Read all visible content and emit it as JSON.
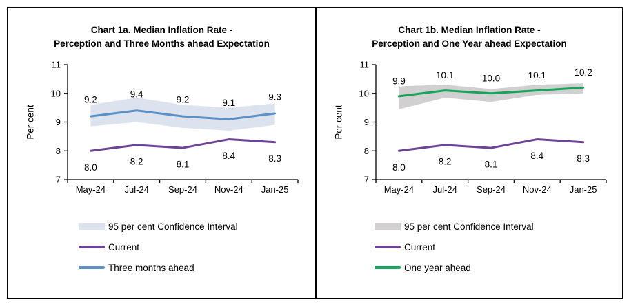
{
  "page": {
    "background": "#ffffff"
  },
  "chart_data": [
    {
      "type": "line",
      "title": "Chart 1a. Median Inflation Rate - Perception and Three Months ahead Expectation",
      "title_lines": [
        "Chart 1a. Median Inflation Rate -",
        "Perception and Three Months ahead Expectation"
      ],
      "categories": [
        "May-24",
        "Jul-24",
        "Sep-24",
        "Nov-24",
        "Jan-25"
      ],
      "series": [
        {
          "name": "Three months ahead",
          "values": [
            9.2,
            9.4,
            9.2,
            9.1,
            9.3
          ],
          "labels": [
            "9.2",
            "9.4",
            "9.2",
            "9.1",
            "9.3"
          ],
          "color": "#5b91c4",
          "label_offset": -24
        },
        {
          "name": "Current",
          "values": [
            8.0,
            8.2,
            8.1,
            8.4,
            8.3
          ],
          "labels": [
            "8.0",
            "8.2",
            "8.1",
            "8.4",
            "8.3"
          ],
          "color": "#6d4396",
          "label_offset": 24
        }
      ],
      "band": {
        "name": "95 per cent Confidence Interval",
        "upper": [
          9.6,
          9.85,
          9.6,
          9.5,
          9.65
        ],
        "lower": [
          8.85,
          9.0,
          8.8,
          8.7,
          8.9
        ],
        "color": "#dde3ee"
      },
      "ylabel": "Per cent",
      "ylim": [
        7,
        11
      ],
      "yticks": [
        7,
        8,
        9,
        10,
        11
      ],
      "grid": false,
      "legend_position": "bottom",
      "legend": [
        {
          "label": "95 per cent Confidence Interval",
          "type": "band",
          "color": "#dde3ee"
        },
        {
          "label": "Current",
          "type": "line",
          "color": "#6d4396"
        },
        {
          "label": "Three months ahead",
          "type": "line",
          "color": "#5b91c4"
        }
      ]
    },
    {
      "type": "line",
      "title": "Chart 1b. Median Inflation Rate - Perception and One Year ahead Expectation",
      "title_lines": [
        "Chart 1b. Median Inflation Rate -",
        "Perception and One Year ahead Expectation"
      ],
      "categories": [
        "May-24",
        "Jul-24",
        "Sep-24",
        "Nov-24",
        "Jan-25"
      ],
      "series": [
        {
          "name": "One year ahead",
          "values": [
            9.9,
            10.1,
            10.0,
            10.1,
            10.2
          ],
          "labels": [
            "9.9",
            "10.1",
            "10.0",
            "10.1",
            "10.2"
          ],
          "color": "#17a45c",
          "label_offset": -22
        },
        {
          "name": "Current",
          "values": [
            8.0,
            8.2,
            8.1,
            8.4,
            8.3
          ],
          "labels": [
            "8.0",
            "8.2",
            "8.1",
            "8.4",
            "8.3"
          ],
          "color": "#6d4396",
          "label_offset": 24
        }
      ],
      "band": {
        "name": "95 per cent Confidence Interval",
        "upper": [
          10.25,
          10.3,
          10.15,
          10.3,
          10.35
        ],
        "lower": [
          9.45,
          9.85,
          9.7,
          9.95,
          10.0
        ],
        "color": "#d1cfcf"
      },
      "ylabel": "Per cent",
      "ylim": [
        7,
        11
      ],
      "yticks": [
        7,
        8,
        9,
        10,
        11
      ],
      "grid": false,
      "legend_position": "bottom",
      "legend": [
        {
          "label": "95 per cent Confidence Interval",
          "type": "band",
          "color": "#d1cfcf"
        },
        {
          "label": "Current",
          "type": "line",
          "color": "#6d4396"
        },
        {
          "label": "One year ahead",
          "type": "line",
          "color": "#17a45c"
        }
      ]
    }
  ]
}
